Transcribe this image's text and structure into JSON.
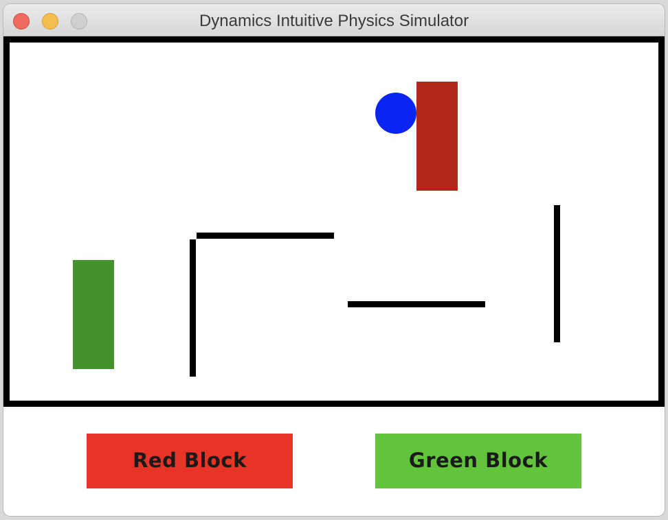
{
  "window": {
    "title": "Dynamics Intuitive Physics Simulator"
  },
  "scene": {
    "colors": {
      "ball": "#0b24f5",
      "red_block": "#b3261c",
      "green_block": "#45912b",
      "wall": "#000000"
    }
  },
  "buttons": {
    "red_block": {
      "label": "Red Block",
      "color": "#e83427"
    },
    "green_block": {
      "label": "Green Block",
      "color": "#62c43b"
    }
  }
}
